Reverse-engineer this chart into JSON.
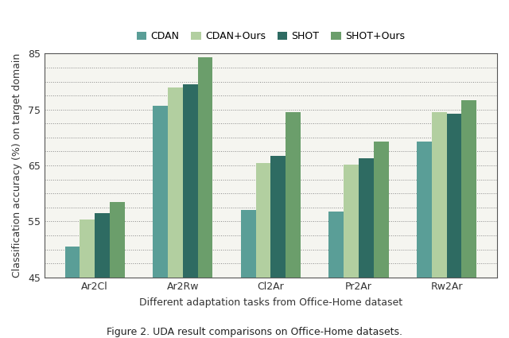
{
  "categories": [
    "Ar2Cl",
    "Ar2Rw",
    "Cl2Ar",
    "Pr2Ar",
    "Rw2Ar"
  ],
  "series": {
    "CDAN": [
      50.5,
      75.6,
      57.0,
      56.7,
      69.3
    ],
    "CDAN+Ours": [
      55.3,
      79.0,
      65.5,
      65.1,
      74.6
    ],
    "SHOT": [
      56.5,
      79.5,
      66.7,
      66.3,
      74.3
    ],
    "SHOT+Ours": [
      58.5,
      84.3,
      74.6,
      69.3,
      76.6
    ]
  },
  "colors": {
    "CDAN": "#5a9e97",
    "CDAN+Ours": "#b2cfa0",
    "SHOT": "#2e6b62",
    "SHOT+Ours": "#6b9e6b"
  },
  "xlabel": "Different adaptation tasks from Office-Home dataset",
  "ylabel": "Classification accuracy (%) on target domain",
  "ylim": [
    45,
    85
  ],
  "yticks": [
    45,
    55,
    65,
    75,
    85
  ],
  "caption": "Figure 2. UDA result comparisons on Office-Home datasets.",
  "bar_width": 0.17,
  "background_color": "#ffffff",
  "plot_bg_color": "#f5f5f0"
}
